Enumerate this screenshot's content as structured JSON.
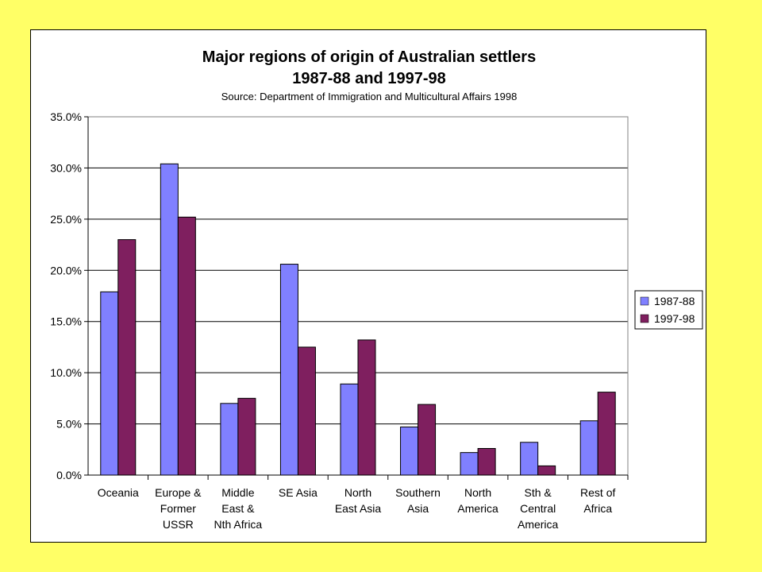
{
  "chart_data": {
    "type": "bar",
    "title": [
      "Major regions of origin of Australian settlers",
      "1987-88 and 1997-98"
    ],
    "subtitle": "Source: Department of Immigration and Multicultural Affairs 1998",
    "categories": [
      [
        "Oceania"
      ],
      [
        "Europe &",
        "Former",
        "USSR"
      ],
      [
        "Middle",
        "East &",
        "Nth Africa"
      ],
      [
        "SE Asia"
      ],
      [
        "North",
        "East Asia"
      ],
      [
        "Southern",
        "Asia"
      ],
      [
        "North",
        "America"
      ],
      [
        "Sth &",
        "Central",
        "America"
      ],
      [
        "Rest of",
        "Africa"
      ]
    ],
    "series": [
      {
        "name": "1987-88",
        "color": "#8080FF",
        "values": [
          17.9,
          30.4,
          7.0,
          20.6,
          8.9,
          4.7,
          2.2,
          3.2,
          5.3
        ]
      },
      {
        "name": "1997-98",
        "color": "#7F1F5F",
        "values": [
          23.0,
          25.2,
          7.5,
          12.5,
          13.2,
          6.9,
          2.6,
          0.9,
          8.1
        ]
      }
    ],
    "yticks": [
      "0.0%",
      "5.0%",
      "10.0%",
      "15.0%",
      "20.0%",
      "25.0%",
      "30.0%",
      "35.0%"
    ],
    "ylim": [
      0,
      35
    ],
    "xlabel": "",
    "ylabel": "",
    "grid": true,
    "legend_position": "right"
  }
}
